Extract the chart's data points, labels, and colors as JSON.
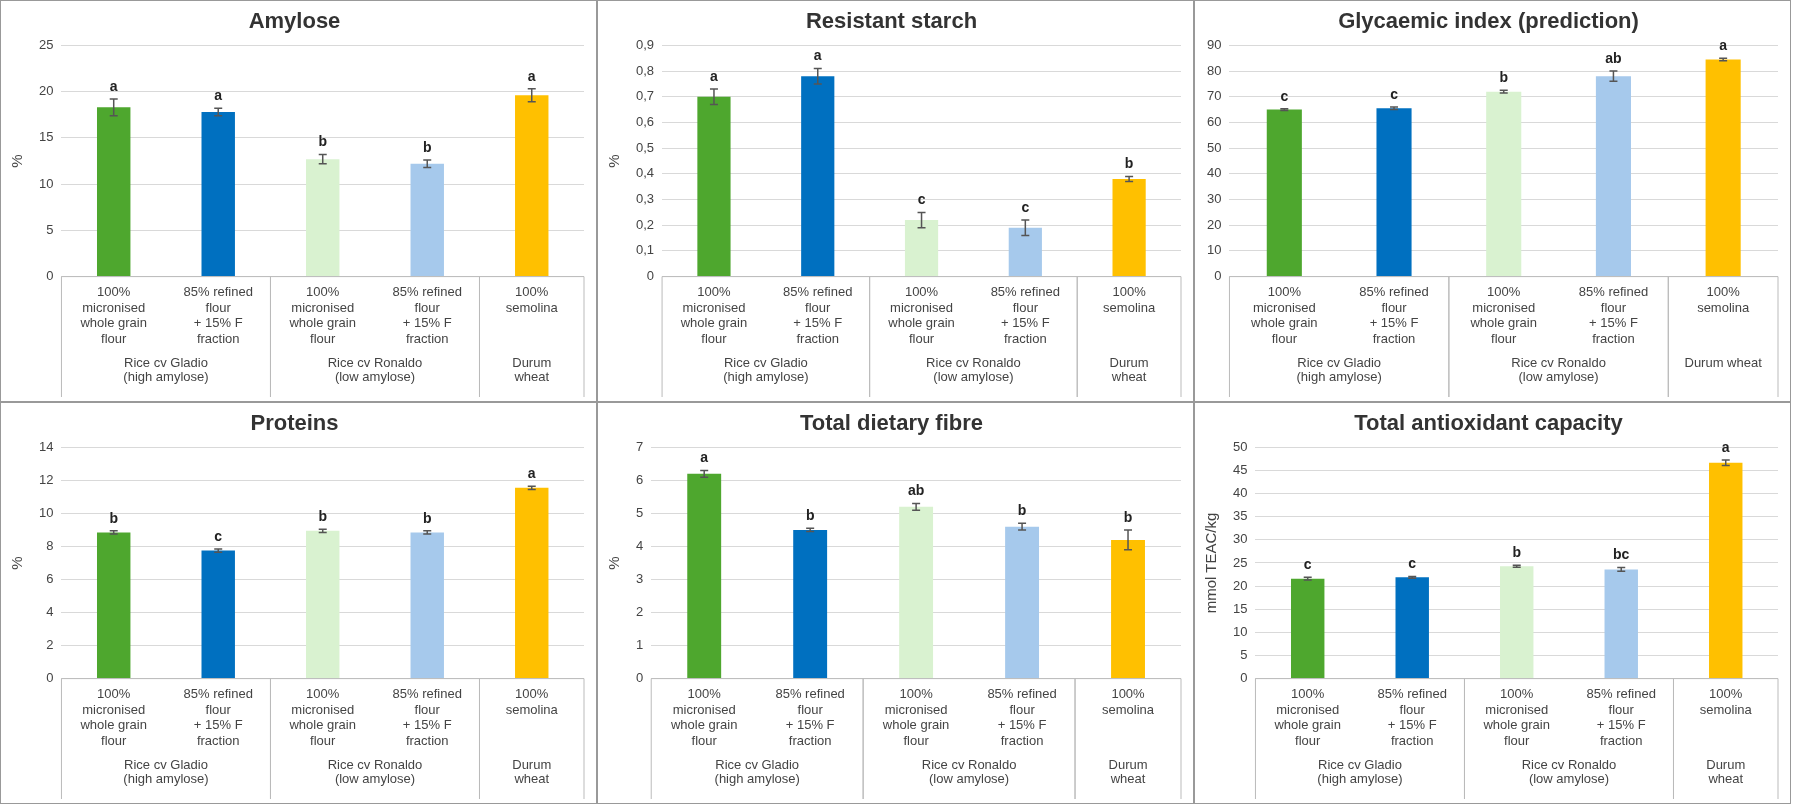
{
  "chart_data": [
    {
      "type": "bar",
      "title": "Amylose",
      "ylabel": "%",
      "grid": "y",
      "categories": [
        "100%\nmicronised\nwhole grain\nflour",
        "85% refined\nflour\n+ 15% F\nfraction",
        "100%\nmicronised\nwhole grain\nflour",
        "85% refined\nflour\n+ 15% F\nfraction",
        "100%\nsemolina"
      ],
      "values": [
        18.3,
        17.8,
        12.7,
        12.2,
        19.6
      ],
      "errors": [
        0.9,
        0.4,
        0.5,
        0.4,
        0.7
      ],
      "value_labels": [
        "a",
        "a",
        "b",
        "b",
        "a"
      ],
      "colors": [
        "#4ea72e",
        "#0070c0",
        "#d9f2d0",
        "#a6c9ec",
        "#ffc000"
      ],
      "ylim": [
        0,
        25
      ],
      "yticks": [
        0,
        5,
        10,
        15,
        20,
        25
      ],
      "annotations": [
        "Rice cv Gladio\n(high amylose)",
        "Rice cv Ronaldo\n(low amylose)",
        "Durum\nwheat"
      ]
    },
    {
      "type": "bar",
      "title": "Resistant starch",
      "ylabel": "%",
      "grid": "y",
      "categories": [
        "100%\nmicronised\nwhole grain\nflour",
        "85% refined\nflour\n+ 15% F\nfraction",
        "100%\nmicronised\nwhole grain\nflour",
        "85% refined\nflour\n+ 15% F\nfraction",
        "100%\nsemolina"
      ],
      "values": [
        0.7,
        0.78,
        0.22,
        0.19,
        0.38
      ],
      "errors": [
        0.03,
        0.03,
        0.03,
        0.03,
        0.01
      ],
      "value_labels": [
        "a",
        "a",
        "c",
        "c",
        "b"
      ],
      "colors": [
        "#4ea72e",
        "#0070c0",
        "#d9f2d0",
        "#a6c9ec",
        "#ffc000"
      ],
      "ylim": [
        0,
        0.9
      ],
      "yticks": [
        0,
        {
          "value": 0.1,
          "label": "0,1"
        },
        {
          "value": 0.2,
          "label": "0,2"
        },
        {
          "value": 0.3,
          "label": "0,3"
        },
        {
          "value": 0.4,
          "label": "0,4"
        },
        {
          "value": 0.5,
          "label": "0,5"
        },
        {
          "value": 0.6,
          "label": "0,6"
        },
        {
          "value": 0.7,
          "label": "0,7"
        },
        {
          "value": 0.8,
          "label": "0,8"
        },
        {
          "value": 0.9,
          "label": "0,9"
        }
      ],
      "annotations": [
        "Rice cv Gladio\n(high amylose)",
        "Rice cv Ronaldo\n(low amylose)",
        "Durum\nwheat"
      ]
    },
    {
      "type": "bar",
      "title": "Glycaemic index (prediction)",
      "grid": "y",
      "categories": [
        "100%\nmicronised\nwhole grain\nflour",
        "85% refined\nflour\n+ 15% F\nfraction",
        "100%\nmicronised\nwhole grain\nflour",
        "85% refined\nflour\n+ 15% F\nfraction",
        "100%\nsemolina"
      ],
      "values": [
        65,
        65.5,
        72,
        78,
        84.5
      ],
      "errors": [
        0.3,
        0.5,
        0.5,
        2,
        0.5
      ],
      "value_labels": [
        "c",
        "c",
        "b",
        "ab",
        "a"
      ],
      "colors": [
        "#4ea72e",
        "#0070c0",
        "#d9f2d0",
        "#a6c9ec",
        "#ffc000"
      ],
      "ylim": [
        0,
        90
      ],
      "yticks": [
        0,
        10,
        20,
        30,
        40,
        50,
        60,
        70,
        80,
        90
      ],
      "annotations": [
        "Rice cv Gladio\n(high amylose)",
        "Rice cv Ronaldo\n(low amylose)",
        "Durum wheat"
      ]
    },
    {
      "type": "bar",
      "title": "Proteins",
      "ylabel": "%",
      "grid": "y",
      "categories": [
        "100%\nmicronised\nwhole grain\nflour",
        "85% refined\nflour\n+ 15% F\nfraction",
        "100%\nmicronised\nwhole grain\nflour",
        "85% refined\nflour\n+ 15% F\nfraction",
        "100%\nsemolina"
      ],
      "values": [
        8.85,
        7.75,
        8.95,
        8.85,
        11.55
      ],
      "errors": [
        0.1,
        0.1,
        0.1,
        0.1,
        0.1
      ],
      "value_labels": [
        "b",
        "c",
        "b",
        "b",
        "a"
      ],
      "colors": [
        "#4ea72e",
        "#0070c0",
        "#d9f2d0",
        "#a6c9ec",
        "#ffc000"
      ],
      "ylim": [
        0,
        14
      ],
      "yticks": [
        0,
        2,
        4,
        6,
        8,
        10,
        12,
        14
      ],
      "annotations": [
        "Rice cv Gladio\n(high amylose)",
        "Rice cv Ronaldo\n(low amylose)",
        "Durum\nwheat"
      ]
    },
    {
      "type": "bar",
      "title": "Total dietary fibre",
      "ylabel": "%",
      "grid": "y",
      "categories": [
        "100%\nmicronised\nwhole grain\nflour",
        "85% refined\nflour\n+ 15% F\nfraction",
        "100%\nmicronised\nwhole grain\nflour",
        "85% refined\nflour\n+ 15% F\nfraction",
        "100%\nsemolina"
      ],
      "values": [
        6.2,
        4.5,
        5.2,
        4.6,
        4.2
      ],
      "errors": [
        0.1,
        0.05,
        0.1,
        0.1,
        0.3
      ],
      "value_labels": [
        "a",
        "b",
        "ab",
        "b",
        "b"
      ],
      "colors": [
        "#4ea72e",
        "#0070c0",
        "#d9f2d0",
        "#a6c9ec",
        "#ffc000"
      ],
      "ylim": [
        0,
        7
      ],
      "yticks": [
        0,
        1,
        2,
        3,
        4,
        5,
        6,
        7
      ],
      "annotations": [
        "Rice cv Gladio\n(high amylose)",
        "Rice cv Ronaldo\n(low amylose)",
        "Durum\nwheat"
      ]
    },
    {
      "type": "bar",
      "title": "Total antioxidant capacity",
      "ylabel": "mmol TEAC/kg",
      "grid": "y",
      "categories": [
        "100%\nmicronised\nwhole grain\nflour",
        "85% refined\nflour\n+ 15% F\nfraction",
        "100%\nmicronised\nwhole grain\nflour",
        "85% refined\nflour\n+ 15% F\nfraction",
        "100%\nsemolina"
      ],
      "values": [
        21.6,
        21.9,
        24.3,
        23.6,
        46.7
      ],
      "errors": [
        0.3,
        0.2,
        0.2,
        0.4,
        0.6
      ],
      "value_labels": [
        "c",
        "c",
        "b",
        "bc",
        "a"
      ],
      "colors": [
        "#4ea72e",
        "#0070c0",
        "#d9f2d0",
        "#a6c9ec",
        "#ffc000"
      ],
      "ylim": [
        0,
        50
      ],
      "yticks": [
        0,
        5,
        10,
        15,
        20,
        25,
        30,
        35,
        40,
        45,
        50
      ],
      "annotations": [
        "Rice cv Gladio\n(high amylose)",
        "Rice cv Ronaldo\n(low amylose)",
        "Durum\nwheat"
      ]
    }
  ]
}
